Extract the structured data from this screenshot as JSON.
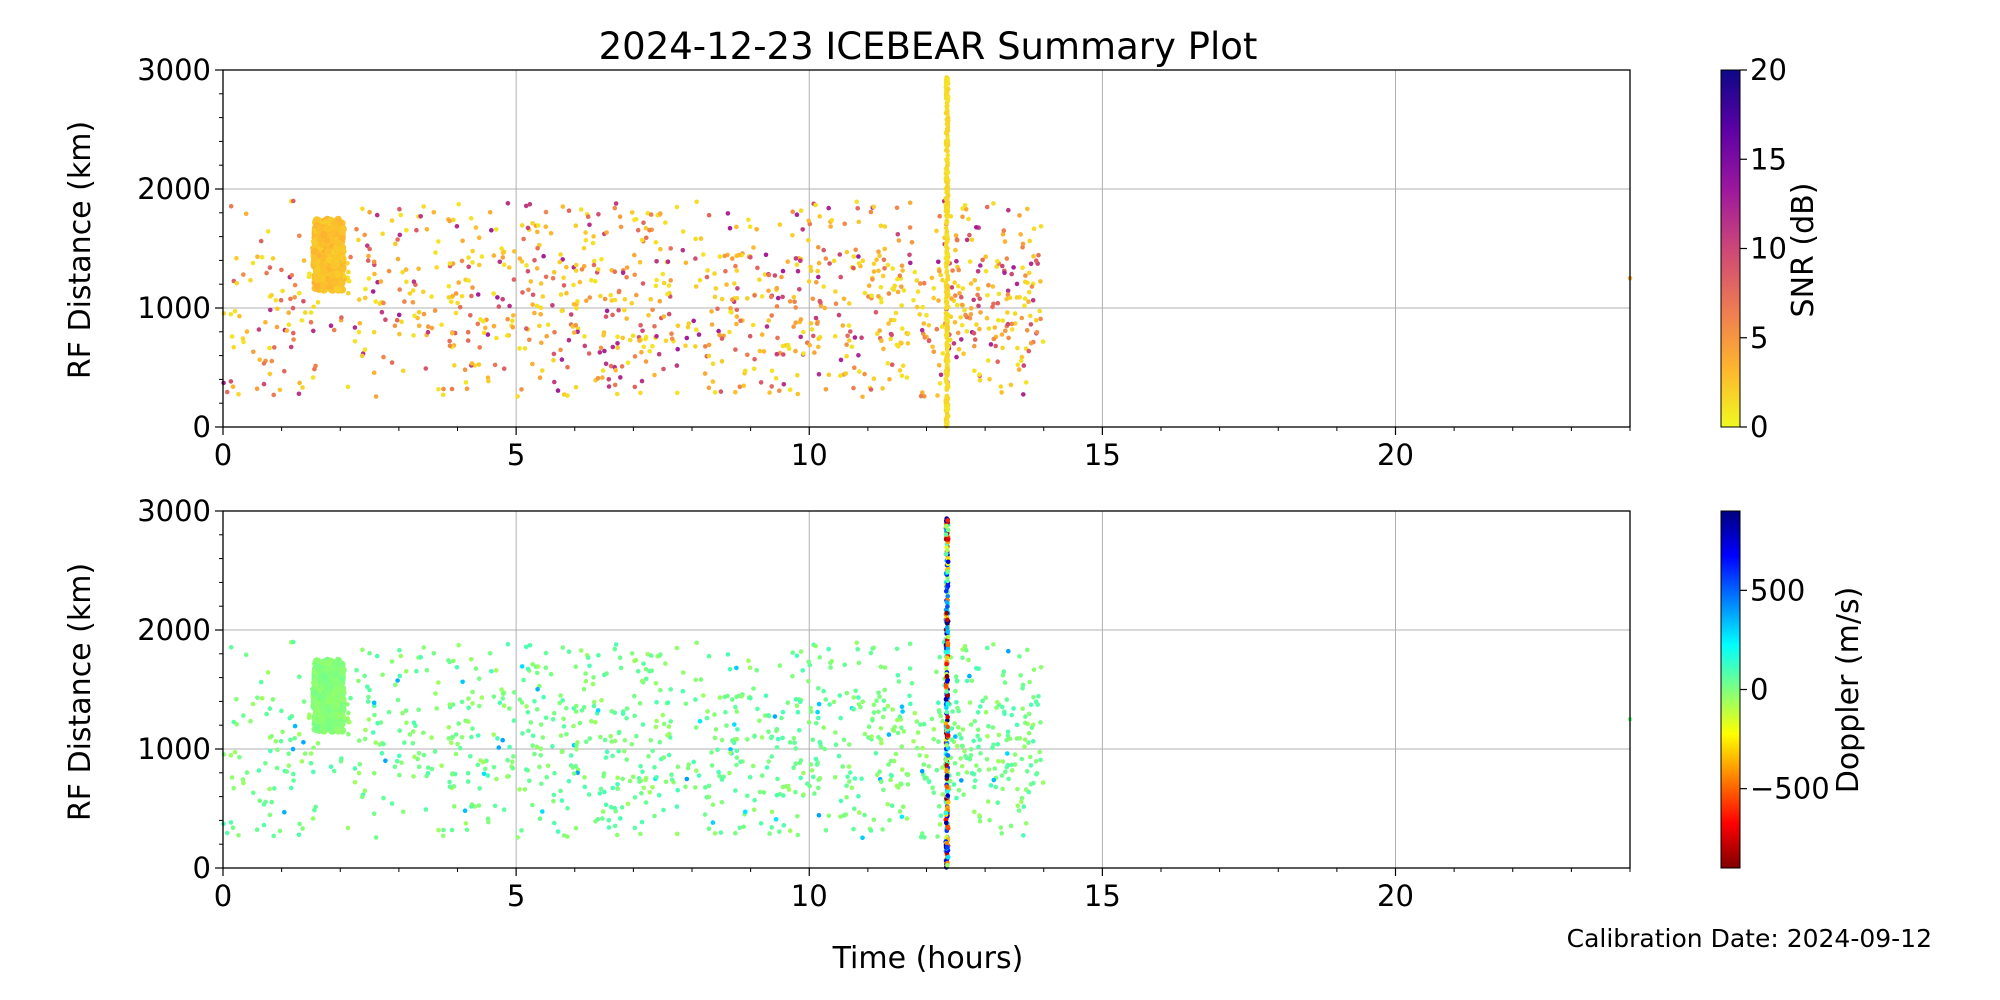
{
  "figure": {
    "title": "2024-12-23 ICEBEAR Summary Plot",
    "calibration": "Calibration Date: 2024-09-12",
    "xlabel": "Time (hours)"
  },
  "chart_data": [
    {
      "type": "scatter",
      "panel": "top",
      "ylabel": "RF Distance (km)",
      "xlim": [
        0,
        24
      ],
      "ylim": [
        0,
        3000
      ],
      "xticks": [
        0,
        5,
        10,
        15,
        20
      ],
      "yticks": [
        0,
        1000,
        2000,
        3000
      ],
      "grid": true,
      "color_by": "SNR (dB)",
      "colorbar": {
        "label": "SNR (dB)",
        "range": [
          0,
          20
        ],
        "ticks": [
          0,
          5,
          10,
          15,
          20
        ],
        "colormap": "plasma_r",
        "stops": [
          "#f0f921",
          "#fdb42f",
          "#ed7953",
          "#cc4778",
          "#9c179e",
          "#5c01a6",
          "#0d0887"
        ]
      },
      "features": {
        "cluster": {
          "x": [
            1.55,
            2.05
          ],
          "y": [
            1150,
            1750
          ],
          "color_value": 2
        },
        "vertical_streak": {
          "x": 12.35,
          "y": [
            0,
            2950
          ],
          "color_value": 1
        },
        "scatter_extent": {
          "x": [
            0,
            14
          ],
          "y": [
            250,
            1900
          ],
          "typical_color_value": [
            1,
            6
          ]
        },
        "outlier": {
          "x": 24,
          "y": 1250
        }
      }
    },
    {
      "type": "scatter",
      "panel": "bottom",
      "ylabel": "RF Distance (km)",
      "xlabel": "Time (hours)",
      "xlim": [
        0,
        24
      ],
      "ylim": [
        0,
        3000
      ],
      "xticks": [
        0,
        5,
        10,
        15,
        20
      ],
      "yticks": [
        0,
        1000,
        2000,
        3000
      ],
      "grid": true,
      "color_by": "Doppler (m/s)",
      "colorbar": {
        "label": "Doppler (m/s)",
        "range": [
          -900,
          900
        ],
        "ticks": [
          -500,
          0,
          500
        ],
        "tick_labels": [
          "−500",
          "0",
          "500"
        ],
        "colormap": "jet_r",
        "stops": [
          "#7f0000",
          "#ff0000",
          "#ff7f00",
          "#ffff00",
          "#7fff7f",
          "#00ffff",
          "#007fff",
          "#0000ff",
          "#00007f"
        ]
      },
      "features": {
        "cluster": {
          "x": [
            1.55,
            2.05
          ],
          "y": [
            1150,
            1750
          ],
          "color_value": -40
        },
        "vertical_streak": {
          "x": 12.35,
          "y": [
            0,
            2950
          ],
          "color_value_range": [
            -900,
            900
          ]
        },
        "scatter_extent": {
          "x": [
            0,
            14
          ],
          "y": [
            250,
            1900
          ],
          "typical_color_value": [
            -60,
            100
          ]
        },
        "outlier": {
          "x": 24,
          "y": 1250
        }
      }
    }
  ]
}
